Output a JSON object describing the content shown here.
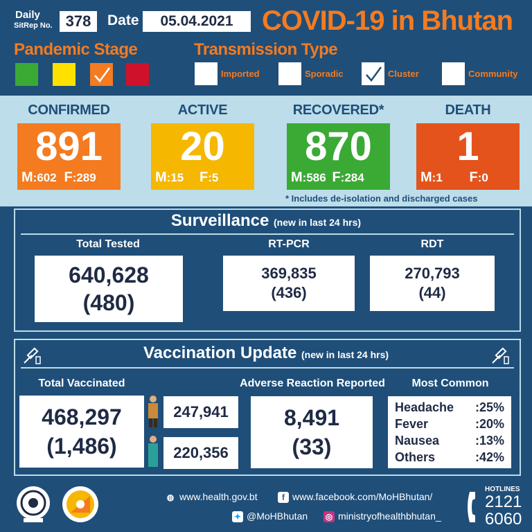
{
  "header": {
    "daily_label": "Daily",
    "sitrep_label": "SitRep No.",
    "sitrep_no": "378",
    "date_label": "Date",
    "date": "05.04.2021",
    "title": "COVID-19 in Bhutan"
  },
  "pandemic_stage": {
    "title": "Pandemic Stage",
    "colors": [
      "#3aaa35",
      "#ffe100",
      "#f47b20",
      "#d0112b"
    ],
    "selected_index": 2
  },
  "transmission_type": {
    "title": "Transmission Type",
    "options": [
      {
        "label": "Imported",
        "checked": false
      },
      {
        "label": "Sporadic",
        "checked": false
      },
      {
        "label": "Cluster",
        "checked": true
      },
      {
        "label": "Community",
        "checked": false
      }
    ]
  },
  "stats": {
    "confirmed": {
      "label": "CONFIRMED",
      "value": "891",
      "m_label": "M",
      "m": ":602",
      "f_label": "F",
      "f": ":289",
      "color": "#f47b20"
    },
    "active": {
      "label": "ACTIVE",
      "value": "20",
      "m_label": "M",
      "m": ":15",
      "f_label": "F",
      "f": ":5",
      "color": "#f5b700"
    },
    "recovered": {
      "label": "RECOVERED*",
      "value": "870",
      "m_label": "M",
      "m": ":586",
      "f_label": "F",
      "f": ":284",
      "color": "#3aaa35"
    },
    "death": {
      "label": "DEATH",
      "value": "1",
      "m_label": "M",
      "m": ":1",
      "f_label": "F",
      "f": ":0",
      "color": "#e4531b"
    },
    "footnote": "* Includes de-isolation and discharged cases"
  },
  "surveillance": {
    "title": "Surveillance",
    "subtitle": "(new in last 24 hrs)",
    "total_tested": {
      "label": "Total Tested",
      "value": "640,628",
      "new": "(480)"
    },
    "rtpcr": {
      "label": "RT-PCR",
      "value": "369,835",
      "new": "(436)"
    },
    "rdt": {
      "label": "RDT",
      "value": "270,793",
      "new": "(44)"
    }
  },
  "vaccination": {
    "title": "Vaccination Update",
    "subtitle": "(new in last 24 hrs)",
    "total": {
      "label": "Total Vaccinated",
      "value": "468,297",
      "new": "(1,486)"
    },
    "male": "247,941",
    "female": "220,356",
    "adverse": {
      "label": "Adverse Reaction Reported",
      "value": "8,491",
      "new": "(33)"
    },
    "most_common": {
      "label": "Most Common",
      "items": [
        {
          "name": "Headache",
          "pct": ":25%"
        },
        {
          "name": "Fever",
          "pct": ":20%"
        },
        {
          "name": "Nausea",
          "pct": ":13%"
        },
        {
          "name": "Others",
          "pct": ":42%"
        }
      ]
    }
  },
  "footer": {
    "website": "www.health.gov.bt",
    "facebook": "www.facebook.com/MoHBhutan/",
    "twitter": "@MoHBhutan",
    "instagram": "ministryofhealthbhutan_",
    "hotlines_label": "HOTLINES",
    "hotline_1": "2121",
    "hotline_2": "6060"
  }
}
